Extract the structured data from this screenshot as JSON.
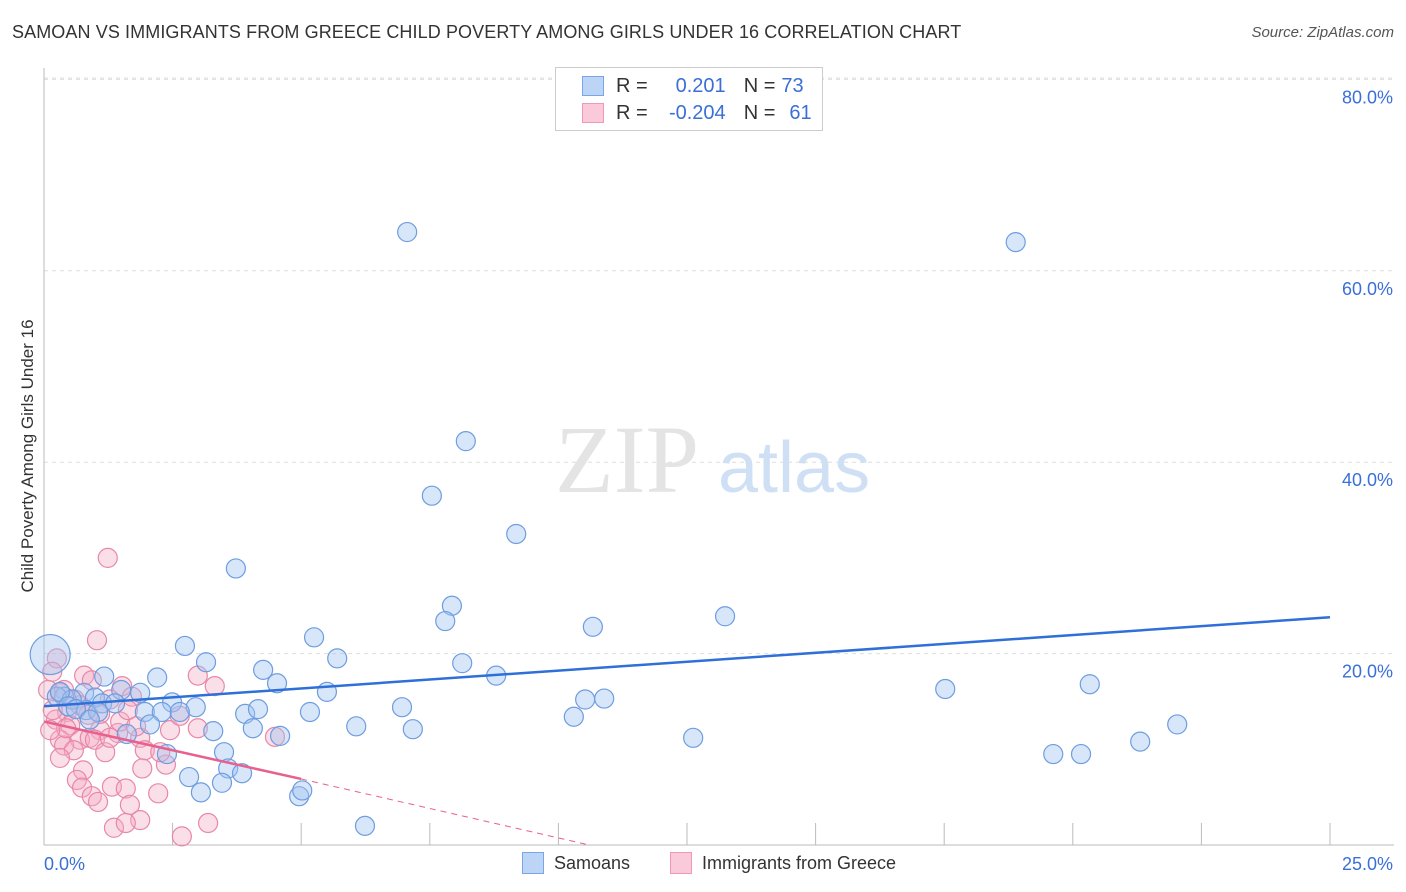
{
  "title": "SAMOAN VS IMMIGRANTS FROM GREECE CHILD POVERTY AMONG GIRLS UNDER 16 CORRELATION CHART",
  "source": "Source: ZipAtlas.com",
  "colors": {
    "blue": "#6e9de0",
    "pink": "#e888a8",
    "blue_line": "#2f6fd8",
    "pink_line": "#e8608e",
    "accent_text": "#3a6fd8"
  },
  "legend": {
    "rows": [
      {
        "r_label": "R =",
        "r_value": "0.201",
        "n_label": "N =",
        "n_value": "73"
      },
      {
        "r_label": "R =",
        "r_value": "-0.204",
        "n_label": "N =",
        "n_value": "61"
      }
    ]
  },
  "watermark": {
    "zip": "ZIP",
    "atlas": "atlas"
  },
  "chart_data": {
    "type": "scatter",
    "title": "SAMOAN VS IMMIGRANTS FROM GREECE CHILD POVERTY AMONG GIRLS UNDER 16 CORRELATION CHART",
    "xlabel": "",
    "ylabel": "Child Poverty Among Girls Under 16",
    "xlim": [
      0,
      25
    ],
    "ylim": [
      0,
      82
    ],
    "x_tick_labels": [
      "0.0%",
      "25.0%"
    ],
    "y_ticks": [
      20,
      40,
      60,
      80
    ],
    "y_tick_labels": [
      "20.0%",
      "40.0%",
      "60.0%",
      "80.0%"
    ],
    "grid": true,
    "legend_position": "top-center",
    "series": [
      {
        "name": "Samoans",
        "trend": {
          "x": [
            0,
            25
          ],
          "y": [
            14.5,
            23.8
          ],
          "dashed_to": null
        },
        "points": [
          [
            7.06,
            64.05
          ],
          [
            18.89,
            63.0
          ],
          [
            8.2,
            42.2
          ],
          [
            7.54,
            36.5
          ],
          [
            9.18,
            32.5
          ],
          [
            3.73,
            28.9
          ],
          [
            7.93,
            25.0
          ],
          [
            7.8,
            23.4
          ],
          [
            13.24,
            23.9
          ],
          [
            10.67,
            22.8
          ],
          [
            5.25,
            21.7
          ],
          [
            2.74,
            20.8
          ],
          [
            5.7,
            19.5
          ],
          [
            3.15,
            19.1
          ],
          [
            8.13,
            19.0
          ],
          [
            4.26,
            18.3
          ],
          [
            1.17,
            17.6
          ],
          [
            2.2,
            17.5
          ],
          [
            4.53,
            16.9
          ],
          [
            8.79,
            17.7
          ],
          [
            17.52,
            16.3
          ],
          [
            20.33,
            16.8
          ],
          [
            0.78,
            15.9
          ],
          [
            1.87,
            15.9
          ],
          [
            5.5,
            16.0
          ],
          [
            10.52,
            15.2
          ],
          [
            10.89,
            15.3
          ],
          [
            1.5,
            16.2
          ],
          [
            0.39,
            15.5
          ],
          [
            0.99,
            15.4
          ],
          [
            2.49,
            14.9
          ],
          [
            2.95,
            14.4
          ],
          [
            6.96,
            14.4
          ],
          [
            5.17,
            13.9
          ],
          [
            1.96,
            13.9
          ],
          [
            2.29,
            13.9
          ],
          [
            2.64,
            13.9
          ],
          [
            3.91,
            13.7
          ],
          [
            4.16,
            14.2
          ],
          [
            10.3,
            13.4
          ],
          [
            6.07,
            12.4
          ],
          [
            4.06,
            12.2
          ],
          [
            3.29,
            11.9
          ],
          [
            7.17,
            12.1
          ],
          [
            4.59,
            11.4
          ],
          [
            22.03,
            12.6
          ],
          [
            12.62,
            11.2
          ],
          [
            21.31,
            10.8
          ],
          [
            19.62,
            9.5
          ],
          [
            20.16,
            9.5
          ],
          [
            3.5,
            9.7
          ],
          [
            2.39,
            9.5
          ],
          [
            3.58,
            8.0
          ],
          [
            3.85,
            7.5
          ],
          [
            2.82,
            7.1
          ],
          [
            3.05,
            5.5
          ],
          [
            3.46,
            6.5
          ],
          [
            4.96,
            5.1
          ],
          [
            5.02,
            5.7
          ],
          [
            6.24,
            2.0
          ],
          [
            0.12,
            19.9
          ],
          [
            0.25,
            15.5
          ],
          [
            0.54,
            15.2
          ],
          [
            0.82,
            14.1
          ],
          [
            1.13,
            14.8
          ],
          [
            1.61,
            11.6
          ],
          [
            1.38,
            14.8
          ],
          [
            2.06,
            12.6
          ],
          [
            0.31,
            16.0
          ],
          [
            0.47,
            14.5
          ],
          [
            0.62,
            14.2
          ],
          [
            1.05,
            13.9
          ],
          [
            0.89,
            13.1
          ]
        ]
      },
      {
        "name": "Immigrants from Greece",
        "trend": {
          "x": [
            0,
            5
          ],
          "y": [
            12.9,
            6.9
          ],
          "dashed_to": [
            10.6,
            0
          ]
        },
        "points": [
          [
            1.24,
            30.0
          ],
          [
            1.03,
            21.4
          ],
          [
            0.25,
            19.5
          ],
          [
            0.16,
            18.1
          ],
          [
            0.31,
            15.9
          ],
          [
            0.78,
            17.7
          ],
          [
            0.93,
            17.2
          ],
          [
            1.52,
            16.6
          ],
          [
            2.99,
            17.7
          ],
          [
            3.32,
            16.6
          ],
          [
            1.28,
            15.2
          ],
          [
            1.71,
            15.5
          ],
          [
            0.6,
            15.2
          ],
          [
            0.45,
            13.9
          ],
          [
            0.23,
            13.1
          ],
          [
            0.51,
            12.5
          ],
          [
            1.09,
            12.0
          ],
          [
            1.44,
            11.7
          ],
          [
            0.7,
            11.0
          ],
          [
            0.31,
            11.0
          ],
          [
            0.39,
            10.4
          ],
          [
            0.89,
            11.2
          ],
          [
            0.58,
            9.9
          ],
          [
            0.99,
            11.0
          ],
          [
            1.48,
            12.9
          ],
          [
            1.87,
            11.2
          ],
          [
            2.45,
            12.0
          ],
          [
            2.99,
            12.2
          ],
          [
            2.64,
            13.5
          ],
          [
            1.96,
            9.9
          ],
          [
            1.19,
            9.7
          ],
          [
            0.31,
            9.1
          ],
          [
            0.76,
            7.8
          ],
          [
            0.64,
            6.8
          ],
          [
            0.74,
            6.0
          ],
          [
            0.93,
            5.1
          ],
          [
            1.05,
            4.5
          ],
          [
            1.32,
            6.1
          ],
          [
            1.59,
            5.9
          ],
          [
            1.67,
            4.2
          ],
          [
            2.22,
            5.4
          ],
          [
            1.87,
            2.6
          ],
          [
            1.36,
            1.8
          ],
          [
            1.59,
            2.3
          ],
          [
            2.68,
            0.9
          ],
          [
            3.19,
            2.3
          ],
          [
            4.49,
            11.3
          ],
          [
            2.37,
            8.4
          ],
          [
            1.91,
            8.0
          ],
          [
            0.08,
            16.2
          ],
          [
            0.17,
            14.1
          ],
          [
            0.39,
            16.2
          ],
          [
            1.28,
            11.2
          ],
          [
            0.43,
            12.2
          ],
          [
            0.12,
            12.0
          ],
          [
            0.7,
            14.6
          ],
          [
            0.86,
            13.6
          ],
          [
            1.79,
            12.4
          ],
          [
            2.26,
            9.7
          ],
          [
            1.63,
            14.1
          ],
          [
            1.09,
            13.7
          ]
        ]
      }
    ]
  }
}
